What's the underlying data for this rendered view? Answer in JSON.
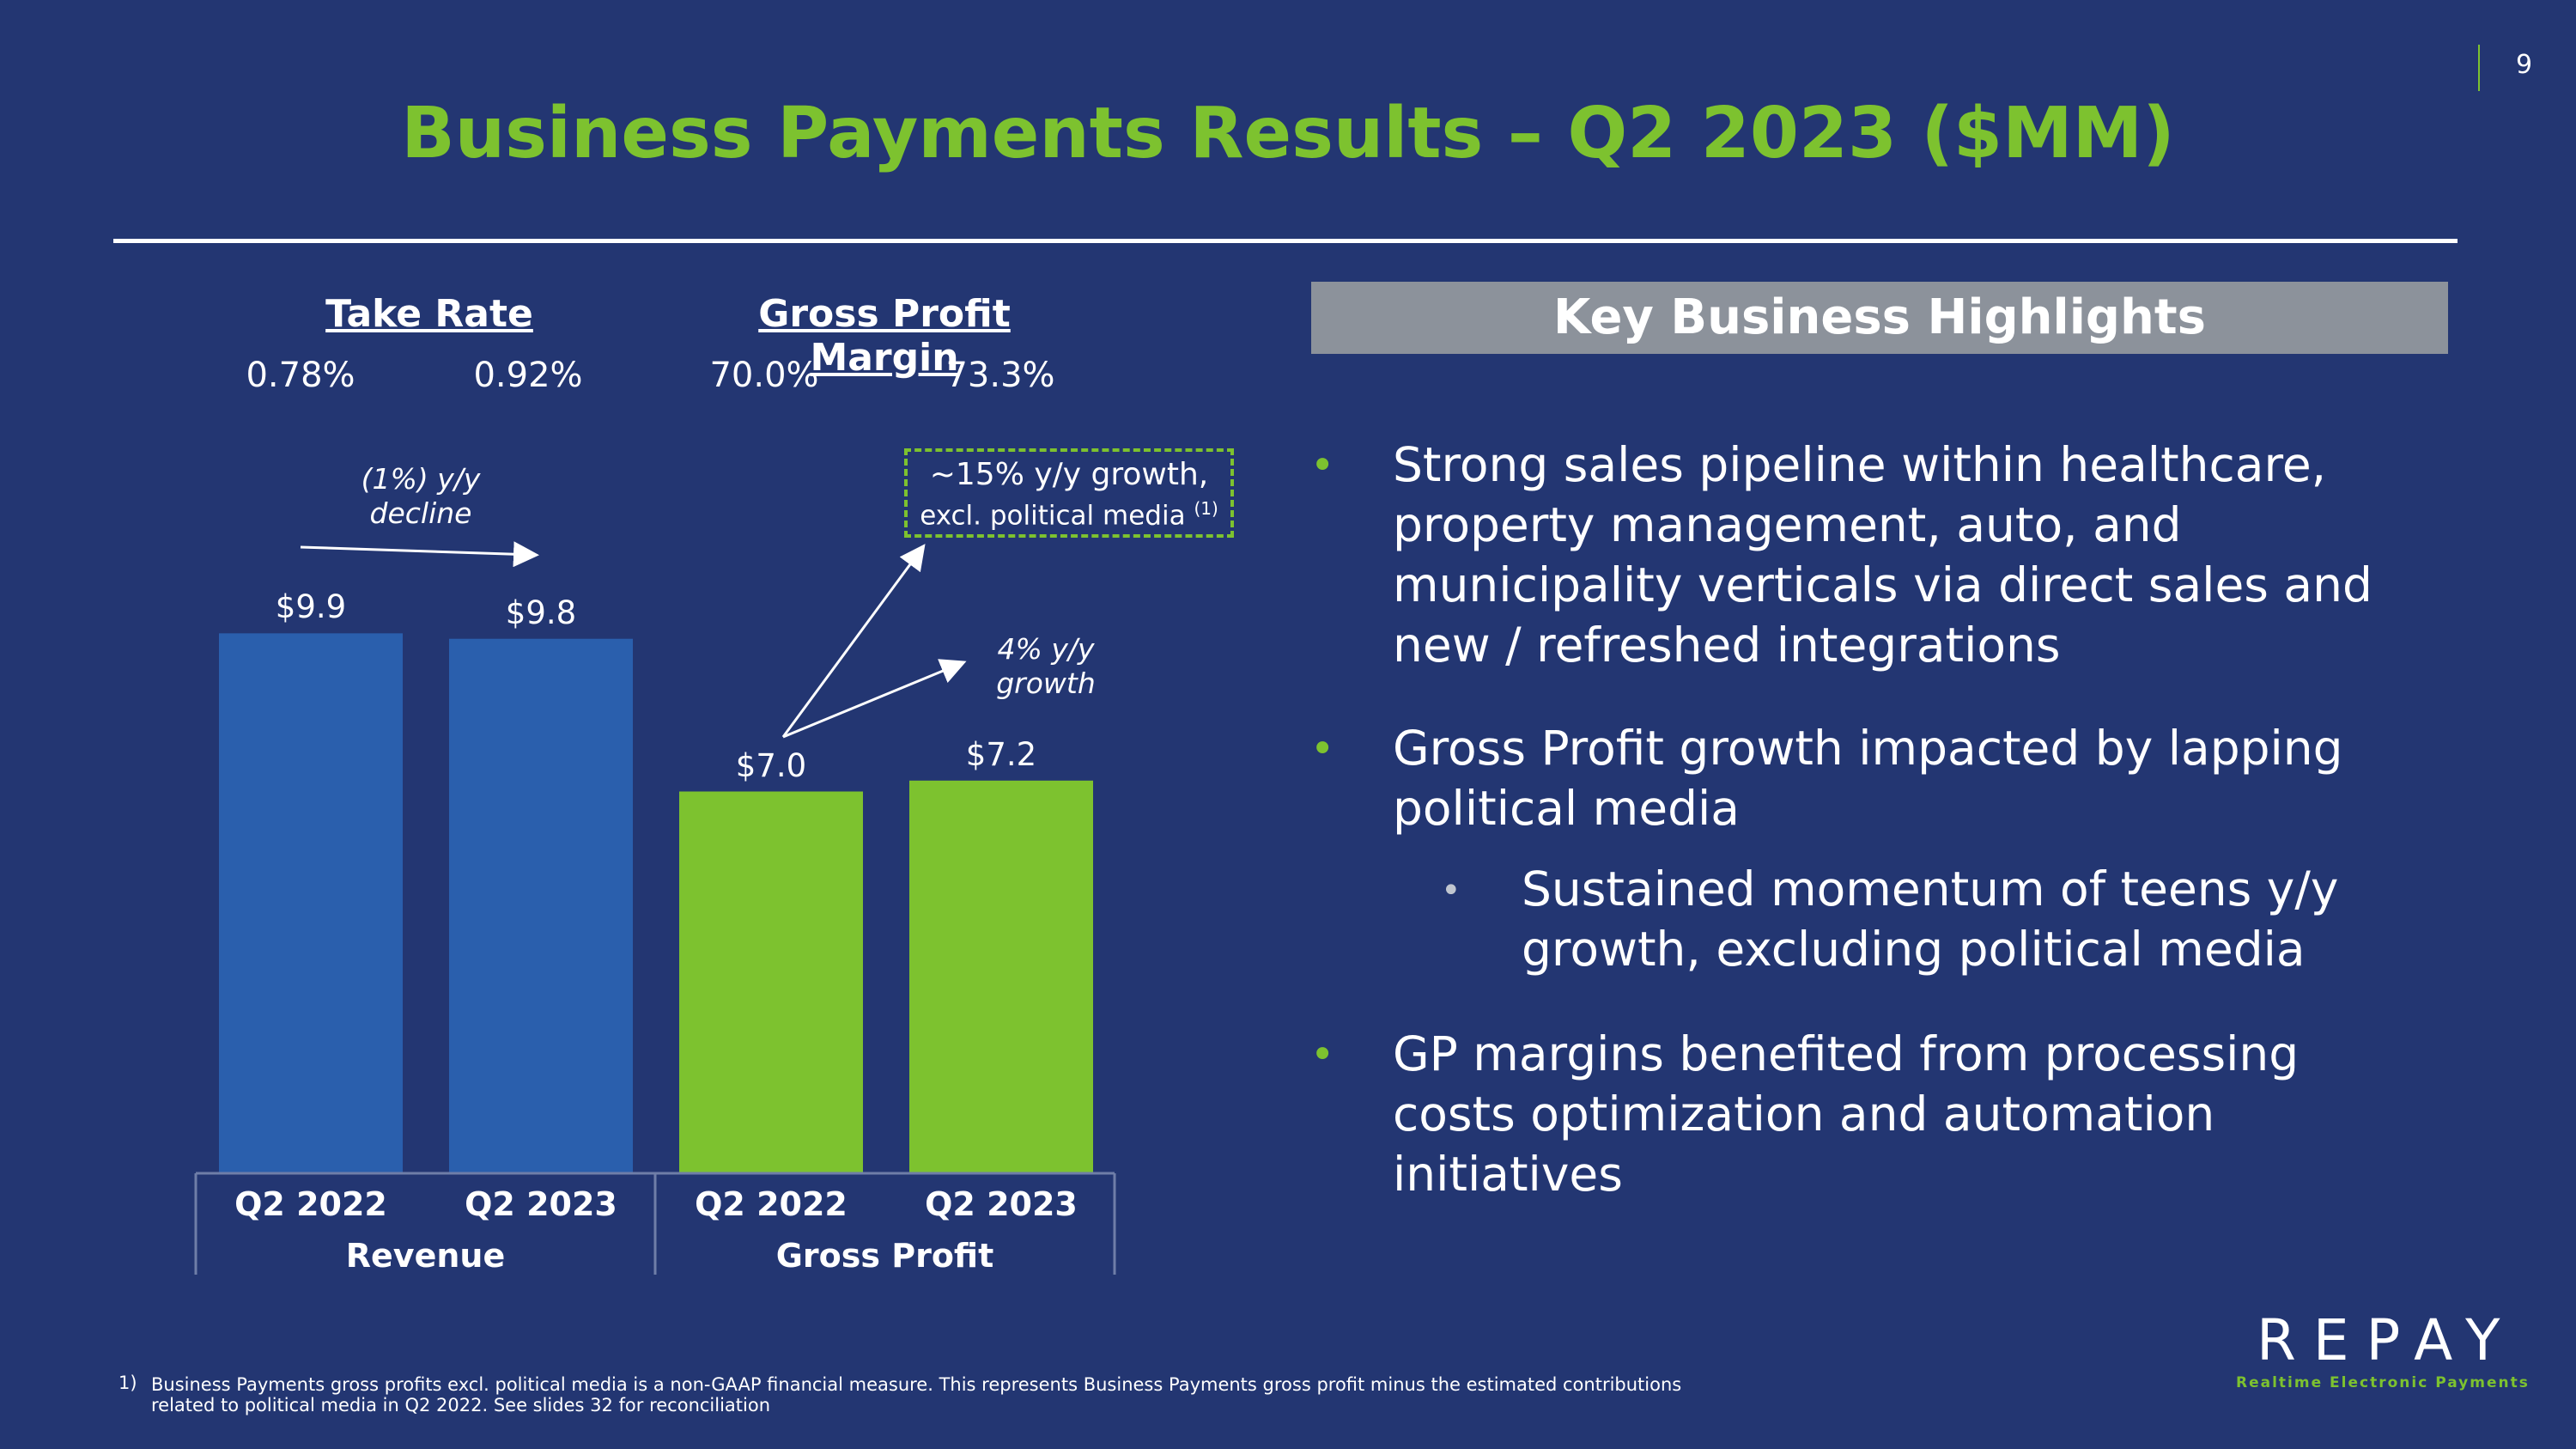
{
  "page_number": "9",
  "title": "Business Payments Results – Q2 2023 ($MM)",
  "kpis": {
    "take_rate": {
      "label": "Take Rate",
      "values": [
        "0.78%",
        "0.92%"
      ]
    },
    "gross_profit_margin": {
      "label": "Gross Profit Margin",
      "values": [
        "70.0%",
        "73.3%"
      ]
    }
  },
  "annotations": {
    "revenue_change": [
      "(1%) y/y",
      "decline"
    ],
    "gp_growth": [
      "4% y/y",
      "growth"
    ],
    "gp_excl_political": [
      "~15% y/y growth,",
      "excl. political media",
      "(1)"
    ]
  },
  "chart_data": {
    "type": "bar",
    "groups": [
      "Revenue",
      "Gross Profit"
    ],
    "categories": [
      "Q2 2022",
      "Q2 2023",
      "Q2 2022",
      "Q2 2023"
    ],
    "values": [
      9.9,
      9.8,
      7.0,
      7.2
    ],
    "value_labels": [
      "$9.9",
      "$9.8",
      "$7.0",
      "$7.2"
    ],
    "colors": [
      "#2a5fad",
      "#2a5fad",
      "#7dc22f",
      "#7dc22f"
    ],
    "ylim": [
      0,
      10
    ]
  },
  "highlights": {
    "heading": "Key Business Highlights",
    "items": [
      {
        "lines": [
          "Strong sales pipeline within healthcare,",
          "property management, auto, and",
          "municipality verticals via direct sales and",
          "new / refreshed integrations"
        ]
      },
      {
        "lines": [
          "Gross Profit growth impacted by lapping",
          "political media"
        ]
      },
      {
        "lines": [
          "Sustained momentum of teens y/y",
          "growth, excluding political media"
        ]
      },
      {
        "lines": [
          "GP margins benefited from processing",
          "costs optimization and automation",
          "initiatives"
        ]
      }
    ]
  },
  "footnote": {
    "number": "1)",
    "lines": [
      "Business Payments gross profits excl. political media is a non-GAAP financial measure. This represents Business Payments gross profit minus the estimated contributions",
      "related to political media in Q2 2022. See slides 32 for reconciliation"
    ]
  },
  "logo": {
    "name": "REPAY",
    "tagline": "Realtime Electronic Payments"
  },
  "colors": {
    "background": "#233672",
    "accent": "#7dc22f",
    "bar_blue": "#2a5fad",
    "header_gray": "#8c929b"
  }
}
